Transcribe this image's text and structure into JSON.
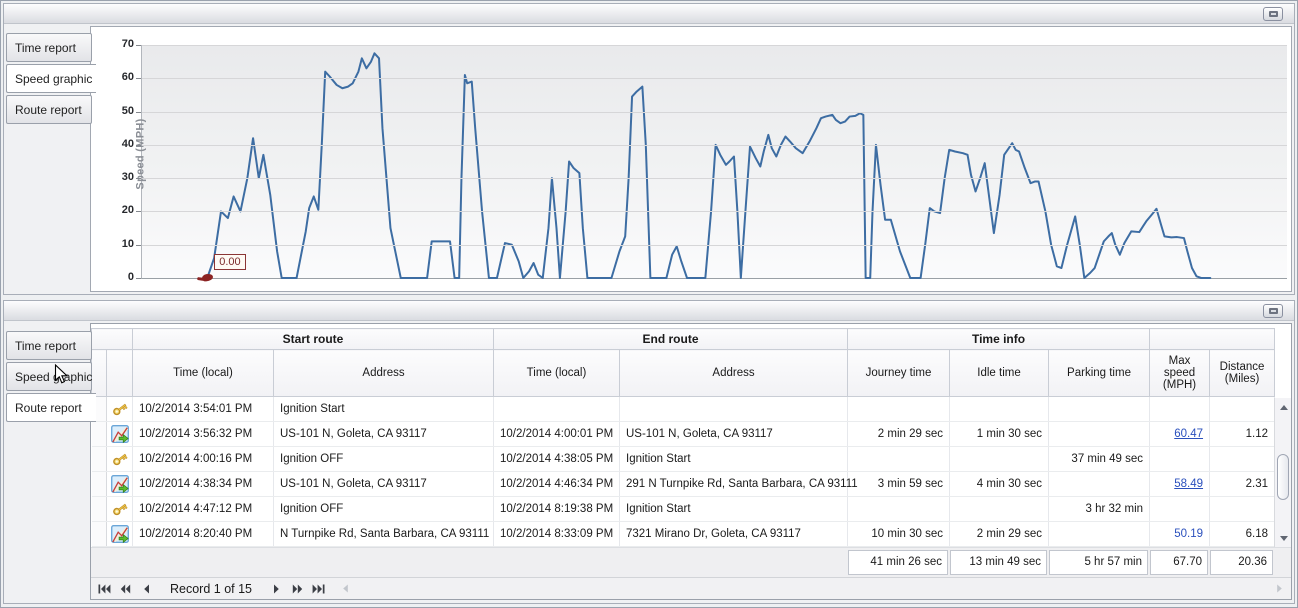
{
  "top_panel": {
    "tabs": [
      {
        "label": "Time report",
        "active": false
      },
      {
        "label": "Speed graphic",
        "active": true
      },
      {
        "label": "Route report",
        "active": false
      }
    ]
  },
  "bottom_panel": {
    "tabs": [
      {
        "label": "Time report",
        "active": false
      },
      {
        "label": "Speed graphic",
        "active": false
      },
      {
        "label": "Route report",
        "active": true
      }
    ]
  },
  "chart_data": {
    "type": "line",
    "title": "",
    "xlabel": "",
    "ylabel": "Speed (MPH)",
    "ylim": [
      0,
      70
    ],
    "yticks": [
      0,
      10,
      20,
      30,
      40,
      50,
      60,
      70
    ],
    "grid": "horizontal",
    "legend": "none",
    "line_color": "#3d6da3",
    "marker_color": "#8b2323",
    "annotation": {
      "label": "0.00",
      "x_pct": 5.7,
      "value": 0
    },
    "points": [
      [
        5.7,
        0
      ],
      [
        6.3,
        6
      ],
      [
        6.9,
        20
      ],
      [
        7.5,
        18
      ],
      [
        8.0,
        24.5
      ],
      [
        8.6,
        20
      ],
      [
        9.2,
        30
      ],
      [
        9.7,
        42
      ],
      [
        10.2,
        30
      ],
      [
        10.6,
        37
      ],
      [
        11.2,
        25
      ],
      [
        11.8,
        8
      ],
      [
        12.2,
        0
      ],
      [
        13.5,
        0
      ],
      [
        14.3,
        14
      ],
      [
        14.6,
        21
      ],
      [
        15.0,
        24.5
      ],
      [
        15.4,
        20.5
      ],
      [
        15.7,
        40
      ],
      [
        16.0,
        62
      ],
      [
        16.4,
        60.5
      ],
      [
        17.0,
        58
      ],
      [
        17.5,
        57
      ],
      [
        18.0,
        57.5
      ],
      [
        18.4,
        58.5
      ],
      [
        18.9,
        62
      ],
      [
        19.2,
        66
      ],
      [
        19.6,
        63
      ],
      [
        20.0,
        65
      ],
      [
        20.3,
        67.5
      ],
      [
        20.7,
        66
      ],
      [
        21.0,
        45
      ],
      [
        21.7,
        15
      ],
      [
        22.3,
        5
      ],
      [
        22.6,
        0
      ],
      [
        24.9,
        0
      ],
      [
        25.3,
        11
      ],
      [
        26.4,
        11
      ],
      [
        26.9,
        11
      ],
      [
        27.3,
        0
      ],
      [
        27.7,
        0
      ],
      [
        27.9,
        30
      ],
      [
        28.2,
        61
      ],
      [
        28.4,
        58.5
      ],
      [
        28.8,
        59
      ],
      [
        29.1,
        45
      ],
      [
        29.7,
        20
      ],
      [
        30.3,
        0
      ],
      [
        31.0,
        0
      ],
      [
        31.7,
        10.5
      ],
      [
        32.3,
        10
      ],
      [
        32.9,
        5
      ],
      [
        33.3,
        0
      ],
      [
        33.8,
        2
      ],
      [
        34.2,
        4.5
      ],
      [
        34.6,
        1
      ],
      [
        35.0,
        0
      ],
      [
        35.5,
        15
      ],
      [
        35.8,
        30
      ],
      [
        36.2,
        15
      ],
      [
        36.5,
        0
      ],
      [
        37.0,
        20
      ],
      [
        37.3,
        35
      ],
      [
        37.7,
        33
      ],
      [
        38.2,
        31.5
      ],
      [
        38.5,
        15
      ],
      [
        38.9,
        0
      ],
      [
        41.0,
        0
      ],
      [
        41.7,
        8
      ],
      [
        42.2,
        12.5
      ],
      [
        42.5,
        30
      ],
      [
        42.8,
        54.5
      ],
      [
        43.2,
        56
      ],
      [
        43.7,
        57.5
      ],
      [
        44.0,
        40
      ],
      [
        44.4,
        0
      ],
      [
        45.8,
        0
      ],
      [
        46.3,
        7
      ],
      [
        46.7,
        9.5
      ],
      [
        47.1,
        5
      ],
      [
        47.6,
        0
      ],
      [
        49.2,
        0
      ],
      [
        49.7,
        20
      ],
      [
        50.1,
        40
      ],
      [
        50.5,
        37
      ],
      [
        51.0,
        34
      ],
      [
        51.3,
        35
      ],
      [
        51.7,
        36.5
      ],
      [
        52.0,
        20
      ],
      [
        52.3,
        0
      ],
      [
        52.7,
        20
      ],
      [
        53.1,
        39.5
      ],
      [
        53.6,
        36
      ],
      [
        54.0,
        33.5
      ],
      [
        54.3,
        38
      ],
      [
        54.7,
        43
      ],
      [
        55.0,
        39
      ],
      [
        55.4,
        36.5
      ],
      [
        55.8,
        40
      ],
      [
        56.2,
        42.5
      ],
      [
        56.6,
        41
      ],
      [
        57.1,
        39
      ],
      [
        57.7,
        37.5
      ],
      [
        58.3,
        41
      ],
      [
        58.9,
        45
      ],
      [
        59.3,
        48
      ],
      [
        59.7,
        48.5
      ],
      [
        60.3,
        49
      ],
      [
        60.6,
        47.5
      ],
      [
        61.0,
        46.5
      ],
      [
        61.4,
        47
      ],
      [
        61.8,
        48.5
      ],
      [
        62.3,
        48.7
      ],
      [
        62.7,
        49.5
      ],
      [
        63.0,
        49
      ],
      [
        63.2,
        0
      ],
      [
        63.6,
        0
      ],
      [
        63.8,
        20
      ],
      [
        64.1,
        40
      ],
      [
        64.5,
        28
      ],
      [
        64.9,
        17.5
      ],
      [
        65.4,
        17.5
      ],
      [
        66.2,
        8
      ],
      [
        67.1,
        0
      ],
      [
        68.0,
        0
      ],
      [
        68.4,
        10
      ],
      [
        68.8,
        21
      ],
      [
        69.2,
        20
      ],
      [
        69.7,
        19.5
      ],
      [
        70.1,
        30
      ],
      [
        70.5,
        38.5
      ],
      [
        71.0,
        38
      ],
      [
        71.7,
        37.5
      ],
      [
        72.1,
        37
      ],
      [
        72.4,
        31
      ],
      [
        72.8,
        26
      ],
      [
        73.2,
        30
      ],
      [
        73.6,
        34.5
      ],
      [
        74.0,
        24
      ],
      [
        74.4,
        13.5
      ],
      [
        74.9,
        25
      ],
      [
        75.3,
        37
      ],
      [
        75.7,
        39
      ],
      [
        76.0,
        40.5
      ],
      [
        76.3,
        38.5
      ],
      [
        76.6,
        38
      ],
      [
        77.1,
        33
      ],
      [
        77.6,
        28.5
      ],
      [
        78.0,
        29
      ],
      [
        78.3,
        29
      ],
      [
        78.9,
        20
      ],
      [
        79.4,
        10
      ],
      [
        79.9,
        3.5
      ],
      [
        80.3,
        3
      ],
      [
        80.8,
        10
      ],
      [
        81.5,
        18.5
      ],
      [
        81.9,
        10
      ],
      [
        82.3,
        0
      ],
      [
        82.8,
        1.5
      ],
      [
        83.2,
        3
      ],
      [
        83.7,
        8
      ],
      [
        84.0,
        11
      ],
      [
        84.4,
        12.5
      ],
      [
        84.7,
        13.5
      ],
      [
        85.0,
        10
      ],
      [
        85.4,
        7
      ],
      [
        85.8,
        10.5
      ],
      [
        86.4,
        14
      ],
      [
        87.1,
        13.8
      ],
      [
        87.7,
        17
      ],
      [
        88.3,
        19.5
      ],
      [
        88.6,
        20.8
      ],
      [
        89.0,
        16
      ],
      [
        89.3,
        12.5
      ],
      [
        89.9,
        12.2
      ],
      [
        90.4,
        12.3
      ],
      [
        91.0,
        12
      ],
      [
        91.3,
        8
      ],
      [
        91.7,
        3
      ],
      [
        92.1,
        0.5
      ],
      [
        92.5,
        0
      ],
      [
        93.3,
        0
      ]
    ]
  },
  "table": {
    "bands": [
      {
        "label": "",
        "span": 2
      },
      {
        "label": "Start route",
        "span": 2
      },
      {
        "label": "End route",
        "span": 2
      },
      {
        "label": "Time info",
        "span": 3
      },
      {
        "label": "",
        "span": 2
      }
    ],
    "columns": [
      "",
      "",
      "Time (local)",
      "Address",
      "Time (local)",
      "Address",
      "Journey time",
      "Idle time",
      "Parking time",
      "Max speed (MPH)",
      "Distance (Miles)"
    ],
    "rows": [
      {
        "icon": "key",
        "cells": [
          "10/2/2014 3:54:01 PM",
          "Ignition Start",
          "",
          "",
          "",
          "",
          "",
          "",
          ""
        ],
        "link": false
      },
      {
        "icon": "route",
        "cells": [
          "10/2/2014 3:56:32 PM",
          "US-101 N, Goleta, CA 93117",
          "10/2/2014 4:00:01 PM",
          "US-101 N, Goleta, CA 93117",
          "2 min 29 sec",
          "1 min 30 sec",
          "",
          "60.47",
          "1.12"
        ],
        "link": true,
        "link_style": "underline"
      },
      {
        "icon": "key",
        "cells": [
          "10/2/2014 4:00:16 PM",
          "Ignition OFF",
          "10/2/2014 4:38:05 PM",
          "Ignition Start",
          "",
          "",
          "37 min 49 sec",
          "",
          ""
        ],
        "link": false
      },
      {
        "icon": "route",
        "cells": [
          "10/2/2014 4:38:34 PM",
          "US-101 N, Goleta, CA 93117",
          "10/2/2014 4:46:34 PM",
          "291 N Turnpike Rd, Santa Barbara, CA 93111",
          "3 min 59 sec",
          "4 min 30 sec",
          "",
          "58.49",
          "2.31"
        ],
        "link": true,
        "link_style": "underline"
      },
      {
        "icon": "key",
        "cells": [
          "10/2/2014 4:47:12 PM",
          "Ignition OFF",
          "10/2/2014 8:19:38 PM",
          "Ignition Start",
          "",
          "",
          "3 hr 32 min",
          "",
          ""
        ],
        "link": false
      },
      {
        "icon": "route",
        "cells": [
          "10/2/2014 8:20:40 PM",
          "N Turnpike Rd, Santa Barbara, CA 93111",
          "10/2/2014 8:33:09 PM",
          "7321 Mirano Dr, Goleta, CA 93117",
          "10 min 30 sec",
          "2 min 29 sec",
          "",
          "50.19",
          "6.18"
        ],
        "link": true,
        "link_style": "plain"
      }
    ],
    "summary": {
      "journey_time": "41 min 26 sec",
      "idle_time": "13 min 49 sec",
      "parking_time": "5 hr 57 min",
      "max_speed": "67.70",
      "distance": "20.36"
    },
    "navigator": {
      "label": "Record 1 of 15"
    }
  }
}
